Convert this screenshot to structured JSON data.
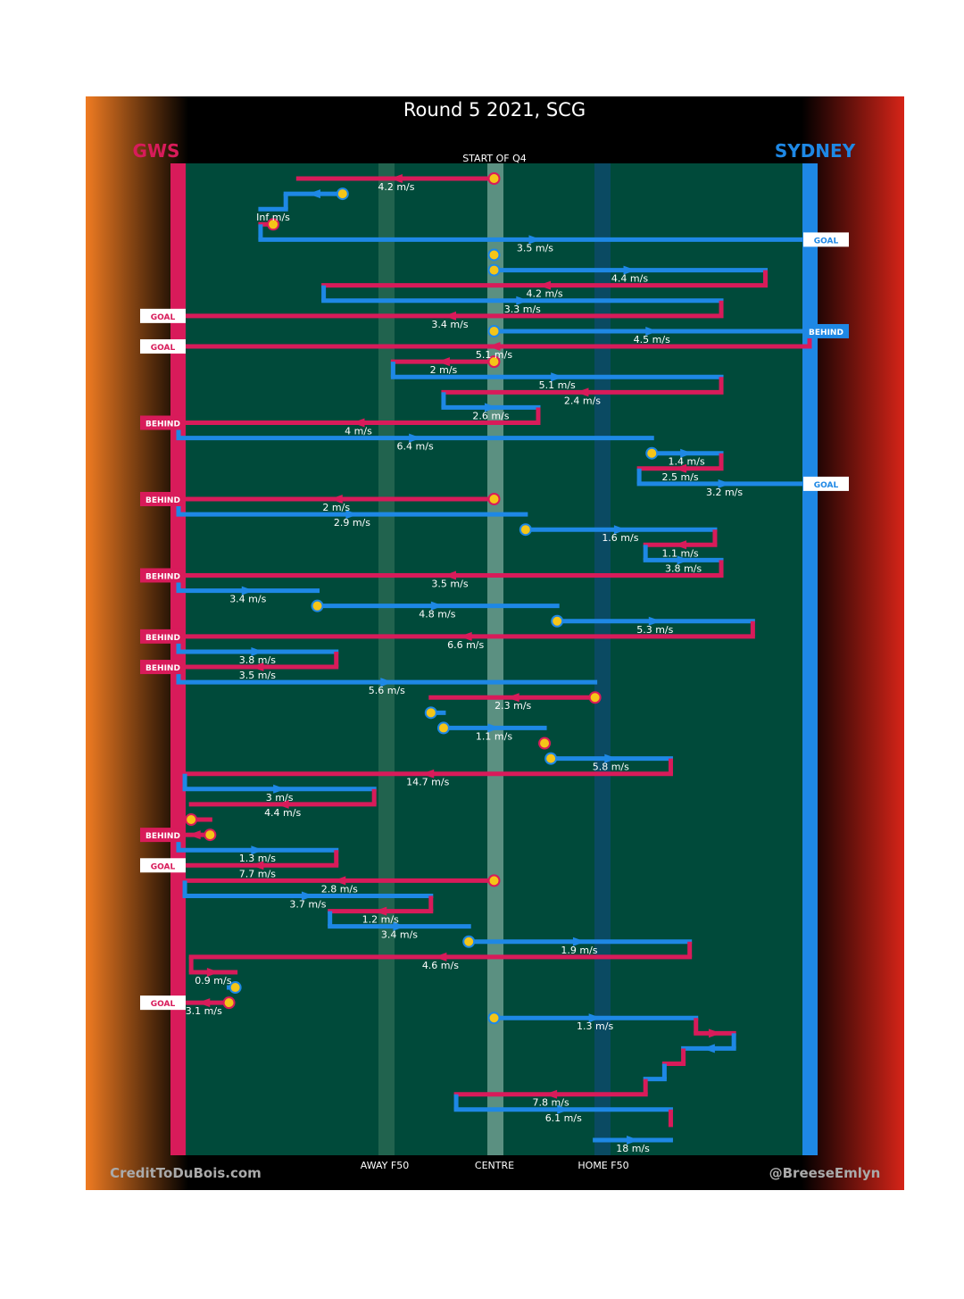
{
  "title": "Round 5 2021, SCG",
  "subtitle": "START OF Q4",
  "teams": {
    "away": {
      "name": "GWS",
      "color": "#d81b5a"
    },
    "home": {
      "name": "SYDNEY",
      "color": "#1e88e5"
    }
  },
  "axis": {
    "labels": [
      {
        "x": 0.32,
        "text": "AWAY F50"
      },
      {
        "x": 0.5,
        "text": "CENTRE"
      },
      {
        "x": 0.68,
        "text": "HOME F50"
      }
    ]
  },
  "credits": {
    "left": "CreditToDuBois.com",
    "right": "@BreeseEmlyn"
  },
  "colors": {
    "field": "#004a3a",
    "stoppage": "#f5c518",
    "background": "#000000",
    "left_glow": "#ef7b22",
    "right_glow": "#d62418"
  },
  "chart_data": {
    "type": "chain-flow",
    "x_axis": {
      "range": [
        0,
        1
      ],
      "ticks": [
        "AWAY F50",
        "CENTRE",
        "HOME F50"
      ]
    },
    "segments": [
      {
        "team": "away",
        "x0": 0.5,
        "x1": 0.19,
        "speed": "4.2 m/s",
        "start_stoppage": true
      },
      {
        "team": "home",
        "x0": 0.26,
        "x1": 0.17,
        "speed": "",
        "start_stoppage": true
      },
      {
        "team": "home",
        "x0": 0.17,
        "x1": 0.13,
        "speed": "Inf m/s"
      },
      {
        "team": "away",
        "x0": 0.15,
        "x1": 0.13,
        "speed": "",
        "start_stoppage": true
      },
      {
        "team": "home",
        "x0": 0.13,
        "x1": 1.0,
        "speed": "3.5 m/s",
        "outcome": "GOAL"
      },
      {
        "team": "home",
        "x0": 0.5,
        "x1": 0.5,
        "speed": "",
        "start_stoppage": true
      },
      {
        "team": "home",
        "x0": 0.5,
        "x1": 0.93,
        "speed": "4.4 m/s",
        "start_stoppage": true
      },
      {
        "team": "away",
        "x0": 0.93,
        "x1": 0.23,
        "speed": "4.2 m/s"
      },
      {
        "team": "home",
        "x0": 0.23,
        "x1": 0.86,
        "speed": "3.3 m/s"
      },
      {
        "team": "away",
        "x0": 0.86,
        "x1": 0.0,
        "speed": "3.4 m/s",
        "outcome": "GOAL"
      },
      {
        "team": "home",
        "x0": 0.5,
        "x1": 1.0,
        "speed": "4.5 m/s",
        "start_stoppage": true,
        "outcome": "BEHIND"
      },
      {
        "team": "away",
        "x0": 1.0,
        "x1": 0.0,
        "speed": "5.1 m/s",
        "outcome": "GOAL"
      },
      {
        "team": "away",
        "x0": 0.5,
        "x1": 0.34,
        "speed": "2 m/s",
        "start_stoppage": true
      },
      {
        "team": "home",
        "x0": 0.34,
        "x1": 0.86,
        "speed": "5.1 m/s"
      },
      {
        "team": "away",
        "x0": 0.86,
        "x1": 0.42,
        "speed": "2.4 m/s"
      },
      {
        "team": "home",
        "x0": 0.42,
        "x1": 0.57,
        "speed": "2.6 m/s"
      },
      {
        "team": "away",
        "x0": 0.57,
        "x1": 0.0,
        "speed": "4 m/s",
        "outcome": "BEHIND"
      },
      {
        "team": "home",
        "x0": 0.0,
        "x1": 0.75,
        "speed": "6.4 m/s"
      },
      {
        "team": "home",
        "x0": 0.75,
        "x1": 0.86,
        "speed": "1.4 m/s",
        "start_stoppage": true
      },
      {
        "team": "away",
        "x0": 0.86,
        "x1": 0.73,
        "speed": "2.5 m/s"
      },
      {
        "team": "home",
        "x0": 0.73,
        "x1": 1.0,
        "speed": "3.2 m/s",
        "outcome": "GOAL"
      },
      {
        "team": "away",
        "x0": 0.5,
        "x1": 0.0,
        "speed": "2 m/s",
        "start_stoppage": true,
        "outcome": "BEHIND"
      },
      {
        "team": "home",
        "x0": 0.0,
        "x1": 0.55,
        "speed": "2.9 m/s"
      },
      {
        "team": "home",
        "x0": 0.55,
        "x1": 0.85,
        "speed": "1.6 m/s",
        "start_stoppage": true
      },
      {
        "team": "away",
        "x0": 0.85,
        "x1": 0.74,
        "speed": "1.1 m/s"
      },
      {
        "team": "home",
        "x0": 0.74,
        "x1": 0.86,
        "speed": "3.8 m/s"
      },
      {
        "team": "away",
        "x0": 0.86,
        "x1": 0.0,
        "speed": "3.5 m/s",
        "outcome": "BEHIND"
      },
      {
        "team": "home",
        "x0": 0.0,
        "x1": 0.22,
        "speed": "3.4 m/s"
      },
      {
        "team": "home",
        "x0": 0.22,
        "x1": 0.6,
        "speed": "4.8 m/s",
        "start_stoppage": true
      },
      {
        "team": "home",
        "x0": 0.6,
        "x1": 0.91,
        "speed": "5.3 m/s",
        "start_stoppage": true
      },
      {
        "team": "away",
        "x0": 0.91,
        "x1": 0.0,
        "speed": "6.6 m/s",
        "outcome": "BEHIND"
      },
      {
        "team": "home",
        "x0": 0.0,
        "x1": 0.25,
        "speed": "3.8 m/s"
      },
      {
        "team": "away",
        "x0": 0.25,
        "x1": 0.0,
        "speed": "3.5 m/s",
        "outcome": "BEHIND"
      },
      {
        "team": "home",
        "x0": 0.0,
        "x1": 0.66,
        "speed": "5.6 m/s"
      },
      {
        "team": "away",
        "x0": 0.66,
        "x1": 0.4,
        "speed": "2.3 m/s",
        "start_stoppage": true
      },
      {
        "team": "home",
        "x0": 0.4,
        "x1": 0.42,
        "speed": "",
        "start_stoppage": true
      },
      {
        "team": "home",
        "x0": 0.42,
        "x1": 0.58,
        "speed": "1.1 m/s",
        "start_stoppage": true
      },
      {
        "team": "away",
        "x0": 0.58,
        "x1": 0.58,
        "speed": "",
        "start_stoppage": true
      },
      {
        "team": "home",
        "x0": 0.59,
        "x1": 0.78,
        "speed": "5.8 m/s",
        "start_stoppage": true
      },
      {
        "team": "away",
        "x0": 0.78,
        "x1": 0.01,
        "speed": "14.7 m/s"
      },
      {
        "team": "home",
        "x0": 0.01,
        "x1": 0.31,
        "speed": "3 m/s"
      },
      {
        "team": "away",
        "x0": 0.31,
        "x1": 0.02,
        "speed": "4.4 m/s"
      },
      {
        "team": "away",
        "x0": 0.02,
        "x1": 0.05,
        "speed": "",
        "start_stoppage": true
      },
      {
        "team": "away",
        "x0": 0.05,
        "x1": 0.0,
        "speed": "",
        "start_stoppage": true,
        "outcome": "BEHIND"
      },
      {
        "team": "home",
        "x0": 0.0,
        "x1": 0.25,
        "speed": "1.3 m/s"
      },
      {
        "team": "away",
        "x0": 0.25,
        "x1": 0.0,
        "speed": "7.7 m/s",
        "outcome": "GOAL"
      },
      {
        "team": "away",
        "x0": 0.5,
        "x1": 0.01,
        "speed": "2.8 m/s",
        "start_stoppage": true
      },
      {
        "team": "home",
        "x0": 0.01,
        "x1": 0.4,
        "speed": "3.7 m/s"
      },
      {
        "team": "away",
        "x0": 0.4,
        "x1": 0.24,
        "speed": "1.2 m/s"
      },
      {
        "team": "home",
        "x0": 0.24,
        "x1": 0.46,
        "speed": "3.4 m/s"
      },
      {
        "team": "home",
        "x0": 0.46,
        "x1": 0.81,
        "speed": "1.9 m/s",
        "start_stoppage": true
      },
      {
        "team": "away",
        "x0": 0.81,
        "x1": 0.02,
        "speed": "4.6 m/s"
      },
      {
        "team": "away",
        "x0": 0.02,
        "x1": 0.09,
        "speed": "0.9 m/s"
      },
      {
        "team": "home",
        "x0": 0.09,
        "x1": 0.08,
        "speed": "",
        "start_stoppage": true
      },
      {
        "team": "away",
        "x0": 0.08,
        "x1": 0.0,
        "speed": "3.1 m/s",
        "start_stoppage": true,
        "outcome": "GOAL"
      },
      {
        "team": "home",
        "x0": 0.5,
        "x1": 0.82,
        "speed": "1.3 m/s",
        "start_stoppage": true
      },
      {
        "team": "away",
        "x0": 0.82,
        "x1": 0.88,
        "speed": ""
      },
      {
        "team": "home",
        "x0": 0.88,
        "x1": 0.8,
        "speed": ""
      },
      {
        "team": "away",
        "x0": 0.8,
        "x1": 0.77,
        "speed": ""
      },
      {
        "team": "home",
        "x0": 0.77,
        "x1": 0.74,
        "speed": ""
      },
      {
        "team": "away",
        "x0": 0.74,
        "x1": 0.44,
        "speed": "7.8 m/s"
      },
      {
        "team": "home",
        "x0": 0.44,
        "x1": 0.78,
        "speed": "6.1 m/s"
      },
      {
        "team": "away",
        "x0": 0.78,
        "x1": 0.78,
        "speed": ""
      },
      {
        "team": "home",
        "x0": 0.66,
        "x1": 0.78,
        "speed": "18 m/s"
      }
    ]
  }
}
